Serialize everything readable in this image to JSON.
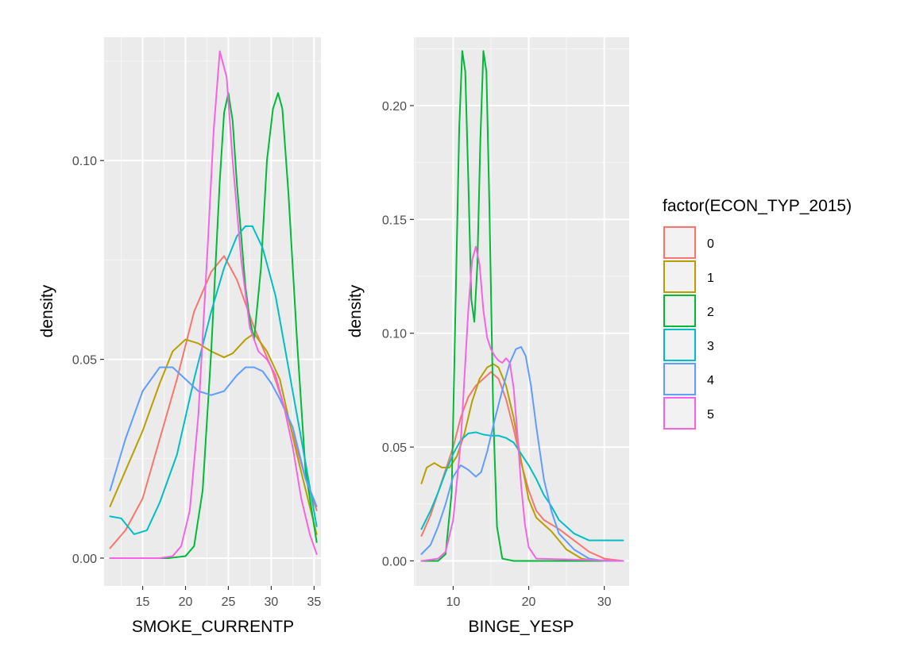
{
  "legend": {
    "title": "factor(ECON_TYP_2015)",
    "entries": [
      {
        "label": "0",
        "color": "#F8766D"
      },
      {
        "label": "1",
        "color": "#B79F00"
      },
      {
        "label": "2",
        "color": "#00BA38"
      },
      {
        "label": "3",
        "color": "#00BFC4"
      },
      {
        "label": "4",
        "color": "#619CFF"
      },
      {
        "label": "5",
        "color": "#F564E3"
      }
    ]
  },
  "chart_data": [
    {
      "type": "line",
      "xlabel": "SMOKE_CURRENTP",
      "ylabel": "density",
      "xlim": [
        10.5,
        35.8
      ],
      "ylim": [
        -0.007,
        0.131
      ],
      "xticks": [
        15,
        20,
        25,
        30,
        35
      ],
      "yticks": [
        0.0,
        0.05,
        0.1
      ],
      "ytick_labels": [
        "0.00",
        "0.05",
        "0.10"
      ],
      "grid": true,
      "series": [
        {
          "name": "0",
          "x": [
            11.2,
            13,
            15,
            17,
            19,
            21,
            23,
            24.5,
            26,
            28,
            30,
            32,
            34,
            35.3
          ],
          "y": [
            0.0025,
            0.007,
            0.015,
            0.03,
            0.045,
            0.062,
            0.072,
            0.076,
            0.07,
            0.058,
            0.048,
            0.035,
            0.02,
            0.012
          ]
        },
        {
          "name": "1",
          "x": [
            11.2,
            13,
            15,
            17,
            18.5,
            20,
            21.5,
            23,
            24.5,
            25.5,
            27,
            28,
            29.5,
            31,
            33,
            35.3
          ],
          "y": [
            0.013,
            0.022,
            0.032,
            0.044,
            0.052,
            0.055,
            0.054,
            0.052,
            0.0505,
            0.0515,
            0.055,
            0.0565,
            0.052,
            0.045,
            0.026,
            0.006
          ]
        },
        {
          "name": "2",
          "x": [
            11.2,
            18,
            20,
            21,
            22,
            23,
            24,
            24.5,
            25,
            25.5,
            26,
            27,
            27.5,
            28,
            28.8,
            29.5,
            30.2,
            30.8,
            31.3,
            32,
            33,
            34,
            35.3
          ],
          "y": [
            0,
            0,
            0.0005,
            0.003,
            0.017,
            0.052,
            0.095,
            0.112,
            0.117,
            0.11,
            0.094,
            0.068,
            0.06,
            0.055,
            0.073,
            0.1,
            0.113,
            0.117,
            0.113,
            0.092,
            0.055,
            0.022,
            0.004
          ]
        },
        {
          "name": "3",
          "x": [
            11.2,
            12.5,
            14,
            15.5,
            17,
            19,
            21,
            23,
            24.5,
            26,
            27,
            27.8,
            29,
            30.5,
            32,
            34,
            35.3
          ],
          "y": [
            0.0105,
            0.01,
            0.006,
            0.007,
            0.014,
            0.026,
            0.045,
            0.062,
            0.073,
            0.081,
            0.0835,
            0.0835,
            0.078,
            0.066,
            0.048,
            0.024,
            0.008
          ]
        },
        {
          "name": "4",
          "x": [
            11.2,
            13,
            15,
            17,
            18.5,
            20,
            21.5,
            23,
            24.5,
            26,
            27,
            28,
            29,
            30,
            31,
            32.5,
            34,
            35.3
          ],
          "y": [
            0.017,
            0.03,
            0.042,
            0.048,
            0.048,
            0.045,
            0.042,
            0.041,
            0.042,
            0.046,
            0.048,
            0.048,
            0.047,
            0.044,
            0.04,
            0.033,
            0.02,
            0.013
          ]
        },
        {
          "name": "5",
          "x": [
            11.2,
            17,
            18.5,
            19.5,
            20.5,
            21.5,
            22.5,
            23.3,
            24,
            24.8,
            25.5,
            26.5,
            27.5,
            28.5,
            29.5,
            30.5,
            31.5,
            32.5,
            33.5,
            34.5,
            35.3
          ],
          "y": [
            0,
            0,
            0.0005,
            0.003,
            0.012,
            0.036,
            0.075,
            0.108,
            0.1275,
            0.121,
            0.1,
            0.075,
            0.058,
            0.052,
            0.05,
            0.046,
            0.038,
            0.028,
            0.015,
            0.006,
            0.001
          ]
        }
      ]
    },
    {
      "type": "line",
      "xlabel": "BINGE_YESP",
      "ylabel": "density",
      "xlim": [
        4.8,
        33.3
      ],
      "ylim": [
        -0.011,
        0.23
      ],
      "xticks": [
        10,
        20,
        30
      ],
      "yticks": [
        0.0,
        0.05,
        0.1,
        0.15,
        0.2
      ],
      "ytick_labels": [
        "0.00",
        "0.05",
        "0.10",
        "0.15",
        "0.20"
      ],
      "grid": true,
      "series": [
        {
          "name": "0",
          "x": [
            5.8,
            7,
            8,
            9,
            10,
            11,
            12,
            13,
            14,
            15,
            16,
            17,
            18,
            19,
            20,
            21,
            22,
            24,
            26,
            28,
            30,
            32.5
          ],
          "y": [
            0.011,
            0.02,
            0.03,
            0.04,
            0.05,
            0.063,
            0.072,
            0.077,
            0.08,
            0.083,
            0.08,
            0.071,
            0.058,
            0.043,
            0.031,
            0.022,
            0.018,
            0.014,
            0.009,
            0.004,
            0.001,
            0
          ]
        },
        {
          "name": "1",
          "x": [
            5.8,
            6.5,
            7.5,
            8.5,
            9.5,
            10.5,
            11.5,
            12.5,
            13.5,
            14.5,
            15.3,
            16,
            17,
            18,
            19,
            20,
            21,
            22,
            23,
            24,
            25,
            27,
            29,
            30.5,
            32.5
          ],
          "y": [
            0.034,
            0.041,
            0.043,
            0.041,
            0.041,
            0.046,
            0.056,
            0.07,
            0.08,
            0.085,
            0.0865,
            0.085,
            0.077,
            0.063,
            0.044,
            0.027,
            0.019,
            0.016,
            0.013,
            0.009,
            0.005,
            0.001,
            0,
            0,
            0
          ]
        },
        {
          "name": "2",
          "x": [
            5.8,
            8,
            9,
            9.8,
            10.3,
            10.8,
            11.2,
            11.6,
            12,
            12.4,
            12.8,
            13.2,
            13.6,
            14,
            14.4,
            14.8,
            15.3,
            15.8,
            16.5,
            18,
            32.5
          ],
          "y": [
            0,
            0,
            0.003,
            0.03,
            0.11,
            0.19,
            0.224,
            0.215,
            0.168,
            0.115,
            0.105,
            0.13,
            0.185,
            0.224,
            0.215,
            0.155,
            0.065,
            0.015,
            0.001,
            0,
            0
          ]
        },
        {
          "name": "3",
          "x": [
            5.8,
            7,
            8,
            9,
            10,
            11,
            12,
            13,
            14,
            15,
            16,
            17,
            18,
            19,
            20,
            21,
            22,
            23,
            24,
            26,
            28,
            30,
            32.5
          ],
          "y": [
            0.014,
            0.022,
            0.03,
            0.039,
            0.047,
            0.053,
            0.056,
            0.0565,
            0.0555,
            0.055,
            0.055,
            0.054,
            0.052,
            0.047,
            0.042,
            0.036,
            0.029,
            0.024,
            0.018,
            0.012,
            0.009,
            0.009,
            0.009
          ]
        },
        {
          "name": "4",
          "x": [
            5.8,
            7,
            8,
            9,
            10,
            11,
            12,
            13,
            13.7,
            14.5,
            15.5,
            16.5,
            17.5,
            18.3,
            19,
            19.6,
            20.3,
            21,
            22,
            23,
            24,
            26,
            28,
            30,
            32.5
          ],
          "y": [
            0.003,
            0.007,
            0.015,
            0.025,
            0.037,
            0.042,
            0.04,
            0.037,
            0.039,
            0.048,
            0.062,
            0.075,
            0.087,
            0.093,
            0.094,
            0.09,
            0.077,
            0.059,
            0.036,
            0.022,
            0.012,
            0.005,
            0.001,
            0,
            0
          ]
        },
        {
          "name": "5",
          "x": [
            5.8,
            8,
            9,
            10,
            11,
            12,
            12.5,
            13,
            13.5,
            14,
            14.5,
            15,
            15.5,
            16,
            16.5,
            17,
            17.5,
            18,
            18.5,
            19,
            19.5,
            20,
            21,
            32.5
          ],
          "y": [
            0,
            0.001,
            0.004,
            0.018,
            0.052,
            0.11,
            0.132,
            0.138,
            0.13,
            0.11,
            0.098,
            0.093,
            0.09,
            0.088,
            0.087,
            0.089,
            0.087,
            0.076,
            0.056,
            0.033,
            0.016,
            0.006,
            0.001,
            0
          ]
        }
      ]
    }
  ]
}
